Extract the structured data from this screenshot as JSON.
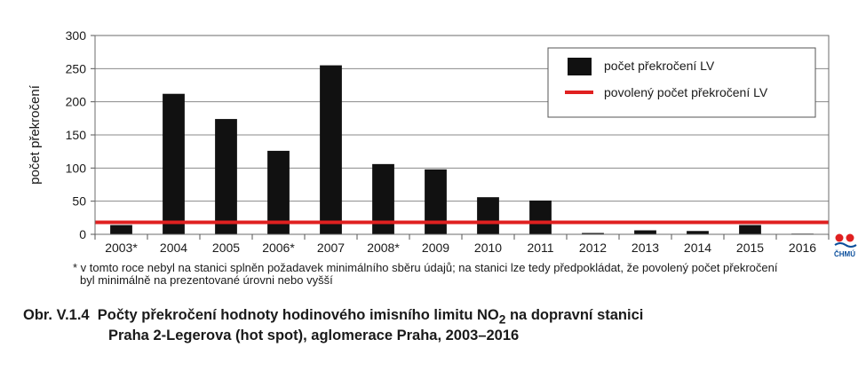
{
  "chart_data": {
    "type": "bar",
    "categories": [
      "2003*",
      "2004",
      "2005",
      "2006*",
      "2007",
      "2008*",
      "2009",
      "2010",
      "2011",
      "2012",
      "2013",
      "2014",
      "2015",
      "2016"
    ],
    "series": [
      {
        "name": "počet překročení LV",
        "color": "#111111",
        "values": [
          14,
          212,
          174,
          126,
          255,
          106,
          98,
          56,
          51,
          2,
          6,
          5,
          14,
          1
        ]
      }
    ],
    "limit_line": {
      "name": "povolený počet překročení LV",
      "value": 18,
      "color": "#e02020"
    },
    "ylabel": "počet překročení",
    "ylim": [
      0,
      300
    ],
    "yticks": [
      0,
      50,
      100,
      150,
      200,
      250,
      300
    ],
    "grid": true,
    "legend_position": "top-right"
  },
  "footnote": {
    "line1": "* v tomto roce nebyl na stanici splněn požadavek minimálního sběru údajů; na stanici lze tedy předpokládat, že povolený počet překročení",
    "line2": "byl minimálně na prezentované úrovni nebo vyšší"
  },
  "caption": {
    "prefix": "Obr. V.1.4",
    "text_before_sub": "Počty překročení hodnoty hodinového imisního limitu NO",
    "sub": "2",
    "text_after_sub": " na dopravní stanici",
    "line2": "Praha 2-Legerova (hot spot), aglomerace Praha, 2003–2016"
  },
  "logo": {
    "text": "ČHMÚ",
    "color": "#0b4f9c",
    "dot_color": "#e02020"
  }
}
